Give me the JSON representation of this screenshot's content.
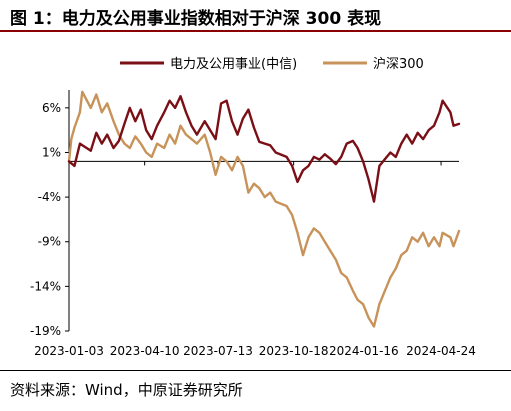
{
  "header": {
    "title": "图 1：电力及公用事业指数相对于沪深 300 表现"
  },
  "footer": {
    "source": "资料来源：Wind，中原证券研究所"
  },
  "chart_data": {
    "type": "line",
    "yticks": [
      "6%",
      "1%",
      "-4%",
      "-9%",
      "-14%",
      "-19%"
    ],
    "ytick_values": [
      6,
      1,
      -4,
      -9,
      -14,
      -19
    ],
    "ylim": [
      -19,
      8
    ],
    "xticks": [
      "2023-01-03",
      "2023-04-10",
      "2023-07-13",
      "2023-10-18",
      "2024-01-16",
      "2024-04-24"
    ],
    "xlim": [
      "2023-01-03",
      "2024-05-17"
    ],
    "legend_position": "top",
    "colors": {
      "series_0": "#7B0F16",
      "series_1": "#C8935A"
    },
    "series": [
      {
        "name": "电力及公用事业(中信)",
        "points": [
          [
            "2023-01-03",
            0.0
          ],
          [
            "2023-01-10",
            -0.5
          ],
          [
            "2023-01-17",
            2.0
          ],
          [
            "2023-01-31",
            1.2
          ],
          [
            "2023-02-07",
            3.2
          ],
          [
            "2023-02-14",
            2.0
          ],
          [
            "2023-02-21",
            3.0
          ],
          [
            "2023-03-01",
            1.5
          ],
          [
            "2023-03-08",
            2.3
          ],
          [
            "2023-03-15",
            4.2
          ],
          [
            "2023-03-22",
            6.0
          ],
          [
            "2023-03-29",
            4.5
          ],
          [
            "2023-04-05",
            5.8
          ],
          [
            "2023-04-12",
            3.5
          ],
          [
            "2023-04-19",
            2.5
          ],
          [
            "2023-04-26",
            4.0
          ],
          [
            "2023-05-05",
            5.5
          ],
          [
            "2023-05-12",
            6.8
          ],
          [
            "2023-05-19",
            6.0
          ],
          [
            "2023-05-26",
            7.3
          ],
          [
            "2023-06-02",
            5.5
          ],
          [
            "2023-06-09",
            4.0
          ],
          [
            "2023-06-16",
            3.0
          ],
          [
            "2023-06-26",
            4.5
          ],
          [
            "2023-07-03",
            3.5
          ],
          [
            "2023-07-10",
            2.5
          ],
          [
            "2023-07-17",
            6.5
          ],
          [
            "2023-07-24",
            6.8
          ],
          [
            "2023-07-31",
            4.5
          ],
          [
            "2023-08-07",
            3.0
          ],
          [
            "2023-08-14",
            4.8
          ],
          [
            "2023-08-21",
            5.8
          ],
          [
            "2023-08-28",
            3.8
          ],
          [
            "2023-09-04",
            2.2
          ],
          [
            "2023-09-11",
            2.0
          ],
          [
            "2023-09-18",
            1.8
          ],
          [
            "2023-09-25",
            1.0
          ],
          [
            "2023-10-09",
            0.5
          ],
          [
            "2023-10-16",
            -0.5
          ],
          [
            "2023-10-23",
            -2.3
          ],
          [
            "2023-10-30",
            -1.0
          ],
          [
            "2023-11-06",
            -0.5
          ],
          [
            "2023-11-13",
            0.5
          ],
          [
            "2023-11-20",
            0.2
          ],
          [
            "2023-11-27",
            0.8
          ],
          [
            "2023-12-04",
            0.3
          ],
          [
            "2023-12-11",
            -0.3
          ],
          [
            "2023-12-18",
            0.5
          ],
          [
            "2023-12-25",
            2.0
          ],
          [
            "2024-01-02",
            2.3
          ],
          [
            "2024-01-08",
            1.5
          ],
          [
            "2024-01-15",
            0.0
          ],
          [
            "2024-01-22",
            -2.0
          ],
          [
            "2024-01-29",
            -4.5
          ],
          [
            "2024-02-05",
            -0.5
          ],
          [
            "2024-02-19",
            1.0
          ],
          [
            "2024-02-26",
            0.5
          ],
          [
            "2024-03-04",
            2.0
          ],
          [
            "2024-03-11",
            3.0
          ],
          [
            "2024-03-18",
            2.0
          ],
          [
            "2024-03-25",
            3.2
          ],
          [
            "2024-04-01",
            2.5
          ],
          [
            "2024-04-08",
            3.5
          ],
          [
            "2024-04-15",
            4.0
          ],
          [
            "2024-04-22",
            5.5
          ],
          [
            "2024-04-26",
            6.8
          ],
          [
            "2024-05-06",
            5.5
          ],
          [
            "2024-05-10",
            4.0
          ],
          [
            "2024-05-17",
            4.2
          ]
        ]
      },
      {
        "name": "沪深300",
        "points": [
          [
            "2023-01-03",
            0.0
          ],
          [
            "2023-01-06",
            2.5
          ],
          [
            "2023-01-10",
            3.8
          ],
          [
            "2023-01-17",
            5.5
          ],
          [
            "2023-01-20",
            7.8
          ],
          [
            "2023-01-31",
            6.0
          ],
          [
            "2023-02-07",
            7.5
          ],
          [
            "2023-02-14",
            5.5
          ],
          [
            "2023-02-21",
            6.5
          ],
          [
            "2023-03-01",
            4.5
          ],
          [
            "2023-03-08",
            3.0
          ],
          [
            "2023-03-15",
            2.0
          ],
          [
            "2023-03-22",
            1.5
          ],
          [
            "2023-03-29",
            2.8
          ],
          [
            "2023-04-05",
            2.0
          ],
          [
            "2023-04-12",
            1.0
          ],
          [
            "2023-04-19",
            0.5
          ],
          [
            "2023-04-26",
            2.0
          ],
          [
            "2023-05-05",
            1.5
          ],
          [
            "2023-05-12",
            3.0
          ],
          [
            "2023-05-19",
            2.0
          ],
          [
            "2023-05-26",
            4.0
          ],
          [
            "2023-06-02",
            3.0
          ],
          [
            "2023-06-09",
            2.5
          ],
          [
            "2023-06-16",
            2.0
          ],
          [
            "2023-06-26",
            3.0
          ],
          [
            "2023-07-03",
            1.0
          ],
          [
            "2023-07-10",
            -1.5
          ],
          [
            "2023-07-17",
            0.5
          ],
          [
            "2023-07-24",
            0.0
          ],
          [
            "2023-07-31",
            -1.0
          ],
          [
            "2023-08-07",
            0.5
          ],
          [
            "2023-08-14",
            -0.5
          ],
          [
            "2023-08-21",
            -3.5
          ],
          [
            "2023-08-28",
            -2.5
          ],
          [
            "2023-09-04",
            -3.0
          ],
          [
            "2023-09-11",
            -4.0
          ],
          [
            "2023-09-18",
            -3.5
          ],
          [
            "2023-09-25",
            -4.5
          ],
          [
            "2023-10-09",
            -5.0
          ],
          [
            "2023-10-16",
            -6.0
          ],
          [
            "2023-10-23",
            -8.0
          ],
          [
            "2023-10-30",
            -10.5
          ],
          [
            "2023-11-06",
            -8.5
          ],
          [
            "2023-11-13",
            -7.5
          ],
          [
            "2023-11-20",
            -8.0
          ],
          [
            "2023-11-27",
            -9.0
          ],
          [
            "2023-12-04",
            -10.0
          ],
          [
            "2023-12-11",
            -11.0
          ],
          [
            "2023-12-18",
            -12.5
          ],
          [
            "2023-12-25",
            -13.0
          ],
          [
            "2024-01-02",
            -14.5
          ],
          [
            "2024-01-08",
            -15.5
          ],
          [
            "2024-01-15",
            -16.0
          ],
          [
            "2024-01-22",
            -17.5
          ],
          [
            "2024-01-29",
            -18.5
          ],
          [
            "2024-02-05",
            -16.0
          ],
          [
            "2024-02-19",
            -13.0
          ],
          [
            "2024-02-26",
            -12.0
          ],
          [
            "2024-03-04",
            -10.5
          ],
          [
            "2024-03-11",
            -10.0
          ],
          [
            "2024-03-18",
            -8.5
          ],
          [
            "2024-03-25",
            -9.0
          ],
          [
            "2024-04-01",
            -8.0
          ],
          [
            "2024-04-08",
            -9.5
          ],
          [
            "2024-04-15",
            -8.5
          ],
          [
            "2024-04-22",
            -9.5
          ],
          [
            "2024-04-26",
            -8.0
          ],
          [
            "2024-05-06",
            -8.5
          ],
          [
            "2024-05-10",
            -9.5
          ],
          [
            "2024-05-17",
            -7.8
          ]
        ]
      }
    ]
  }
}
